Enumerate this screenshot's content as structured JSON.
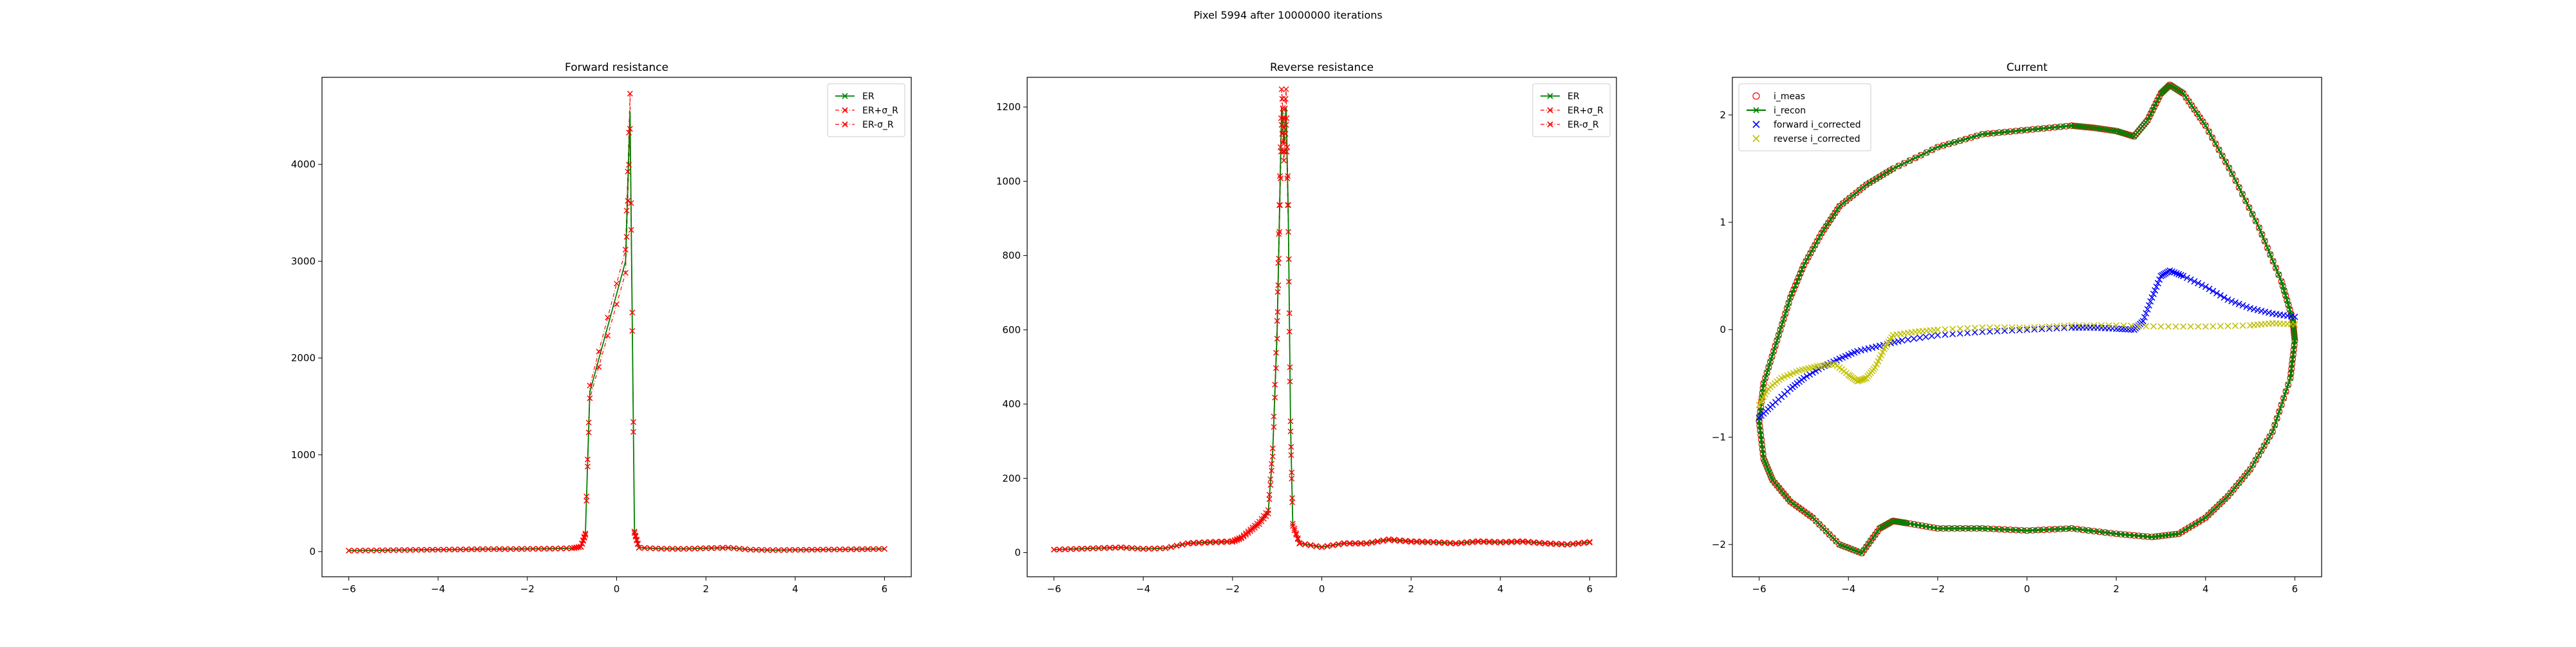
{
  "figure": {
    "title": "Pixel 5994 after 10000000 iterations"
  },
  "chart_data": [
    {
      "type": "line",
      "title": "Forward resistance",
      "xlabel": "",
      "ylabel": "",
      "xlim": [
        -6.6,
        6.6
      ],
      "ylim": [
        -260,
        4900
      ],
      "xticks": [
        -6,
        -4,
        -2,
        0,
        2,
        4,
        6
      ],
      "yticks": [
        0,
        1000,
        2000,
        3000,
        4000
      ],
      "legend": "top-right",
      "colors": {
        "er": "#008000",
        "bounds": "#ff0000"
      },
      "series": [
        {
          "name": "ER",
          "style": "green-line-x"
        },
        {
          "name": "ER+σ_R",
          "style": "red-dashdot-x"
        },
        {
          "name": "ER-σ_R",
          "style": "red-dashdot-x"
        }
      ],
      "x": [
        -6,
        -5.5,
        -5,
        -4.5,
        -4,
        -3.5,
        -3,
        -2.5,
        -2,
        -1.5,
        -1,
        -0.8,
        -0.7,
        -0.6,
        0.2,
        0.3,
        0.4,
        0.5,
        1,
        1.5,
        2,
        2.5,
        3,
        3.5,
        4,
        4.5,
        5,
        5.5,
        6
      ],
      "values": [
        10,
        12,
        15,
        18,
        20,
        22,
        25,
        26,
        28,
        30,
        35,
        50,
        180,
        1650,
        3000,
        4550,
        200,
        40,
        30,
        28,
        35,
        40,
        20,
        15,
        18,
        20,
        22,
        25,
        28
      ]
    },
    {
      "type": "line",
      "title": "Reverse resistance",
      "xlabel": "",
      "ylabel": "",
      "xlim": [
        -6.6,
        6.6
      ],
      "ylim": [
        -65,
        1280
      ],
      "xticks": [
        -6,
        -4,
        -2,
        0,
        2,
        4,
        6
      ],
      "yticks": [
        0,
        200,
        400,
        600,
        800,
        1000,
        1200
      ],
      "legend": "top-right",
      "colors": {
        "er": "#008000",
        "bounds": "#ff0000"
      },
      "series": [
        {
          "name": "ER",
          "style": "green-line-x"
        },
        {
          "name": "ER+σ_R",
          "style": "red-dashdot-x"
        },
        {
          "name": "ER-σ_R",
          "style": "red-dashdot-x"
        }
      ],
      "x": [
        -6,
        -5.5,
        -5,
        -4.5,
        -4,
        -3.5,
        -3,
        -2.5,
        -2,
        -1.8,
        -1.6,
        -1.4,
        -1.2,
        -1.1,
        -1.0,
        -0.95,
        -0.9,
        -0.85,
        -0.8,
        -0.75,
        -0.7,
        -0.65,
        -0.5,
        0,
        0.5,
        1,
        1.5,
        2,
        2.5,
        3,
        3.5,
        4,
        4.5,
        5,
        5.5,
        6
      ],
      "values": [
        8,
        10,
        12,
        14,
        10,
        12,
        25,
        28,
        30,
        40,
        60,
        80,
        110,
        270,
        600,
        900,
        1200,
        1100,
        1200,
        900,
        340,
        75,
        25,
        15,
        25,
        25,
        35,
        30,
        28,
        25,
        30,
        28,
        30,
        25,
        22,
        28
      ]
    },
    {
      "type": "scatter",
      "title": "Current",
      "xlabel": "",
      "ylabel": "",
      "xlim": [
        -6.6,
        6.6
      ],
      "ylim": [
        -2.3,
        2.35
      ],
      "xticks": [
        -6,
        -4,
        -2,
        0,
        2,
        4,
        6
      ],
      "yticks": [
        -2,
        -1,
        0,
        1,
        2
      ],
      "legend": "top-left",
      "colors": {
        "i_meas": "#ff0000",
        "i_recon": "#008000",
        "forward": "#0000ff",
        "reverse": "#bfbf00"
      },
      "series": [
        {
          "name": "i_meas",
          "marker": "o",
          "color": "#ff0000"
        },
        {
          "name": "i_recon",
          "marker": "x-line",
          "color": "#008000"
        },
        {
          "name": "forward i_corrected",
          "marker": "x",
          "color": "#0000ff"
        },
        {
          "name": "reverse i_corrected",
          "marker": "x",
          "color": "#bfbf00"
        }
      ],
      "loop": {
        "x": [
          -6,
          -5.9,
          -5.6,
          -5.3,
          -5,
          -4.6,
          -4.2,
          -3.6,
          -3,
          -2,
          -1,
          0,
          1,
          1.5,
          2,
          2.4,
          2.7,
          3,
          3.2,
          3.5,
          4,
          4.6,
          5.2,
          5.7,
          5.95,
          6,
          5.9,
          5.5,
          5,
          4.5,
          4,
          3.4,
          2.8,
          2,
          1,
          0,
          -1,
          -2,
          -2.7,
          -3,
          -3.3,
          -3.7,
          -4.2,
          -4.8,
          -5.3,
          -5.7,
          -5.9,
          -6
        ],
        "y": [
          -0.85,
          -0.5,
          -0.1,
          0.3,
          0.6,
          0.9,
          1.15,
          1.35,
          1.5,
          1.7,
          1.82,
          1.86,
          1.9,
          1.88,
          1.85,
          1.8,
          1.95,
          2.2,
          2.28,
          2.2,
          1.9,
          1.45,
          0.95,
          0.45,
          0.1,
          -0.1,
          -0.45,
          -0.95,
          -1.3,
          -1.55,
          -1.75,
          -1.9,
          -1.93,
          -1.9,
          -1.85,
          -1.87,
          -1.85,
          -1.85,
          -1.8,
          -1.78,
          -1.85,
          -2.08,
          -2.0,
          -1.75,
          -1.6,
          -1.4,
          -1.2,
          -0.85
        ]
      },
      "forward": {
        "x": [
          -6,
          -5.7,
          -5.3,
          -5,
          -4.6,
          -4.2,
          -3.8,
          -3.3,
          -2.8,
          -2,
          -1,
          0,
          1,
          1.5,
          2,
          2.4,
          2.6,
          2.8,
          3,
          3.2,
          3.5,
          4,
          4.5,
          5,
          5.5,
          6
        ],
        "y": [
          -0.82,
          -0.7,
          -0.55,
          -0.45,
          -0.35,
          -0.27,
          -0.2,
          -0.15,
          -0.1,
          -0.05,
          -0.02,
          0,
          0.02,
          0.02,
          0.01,
          0.0,
          0.08,
          0.3,
          0.5,
          0.55,
          0.5,
          0.4,
          0.28,
          0.2,
          0.15,
          0.12
        ]
      },
      "reverse": {
        "x": [
          -6,
          -5.8,
          -5.5,
          -5.1,
          -4.7,
          -4.3,
          -4,
          -3.8,
          -3.6,
          -3.4,
          -3.2,
          -3,
          -2.5,
          -2,
          -1,
          0,
          1,
          2,
          3,
          4,
          5,
          5.5,
          6
        ],
        "y": [
          -0.7,
          -0.55,
          -0.45,
          -0.38,
          -0.34,
          -0.32,
          -0.42,
          -0.48,
          -0.45,
          -0.35,
          -0.18,
          -0.05,
          -0.02,
          0,
          0.02,
          0.02,
          0.04,
          0.04,
          0.03,
          0.03,
          0.04,
          0.06,
          0.05
        ]
      }
    }
  ]
}
